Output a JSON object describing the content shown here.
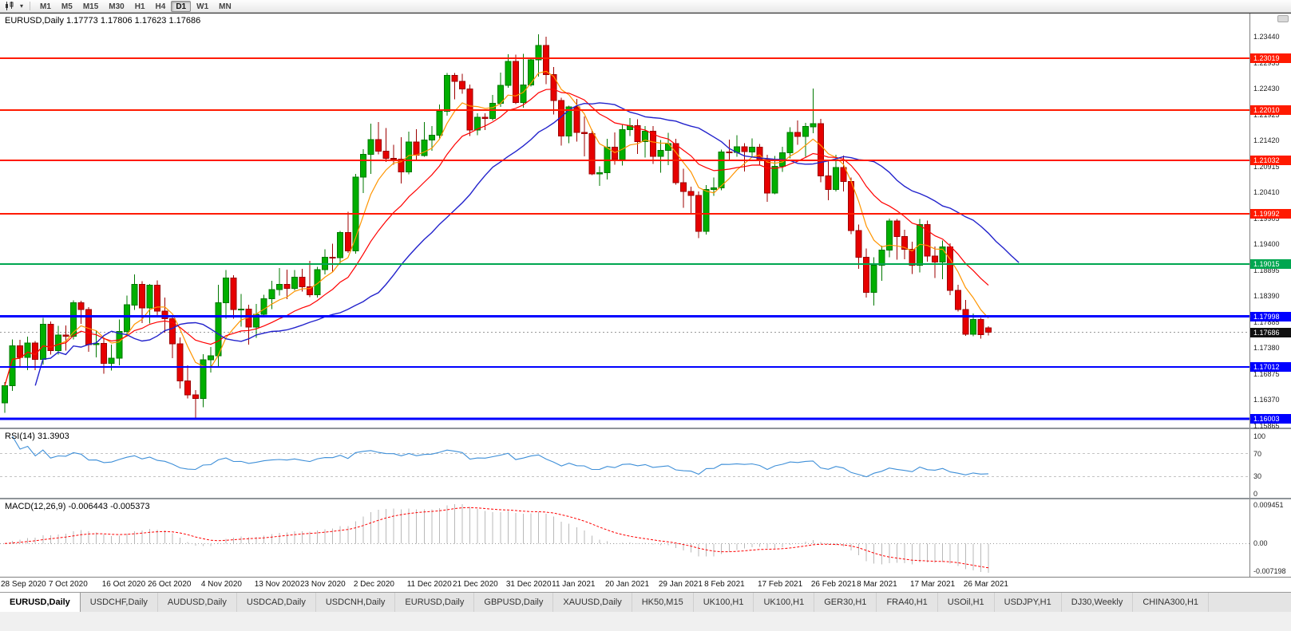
{
  "toolbar": {
    "timeframes": [
      "M1",
      "M5",
      "M15",
      "M30",
      "H1",
      "H4",
      "D1",
      "W1",
      "MN"
    ],
    "active_timeframe": "D1"
  },
  "colors": {
    "bull_fill": "#00AF00",
    "bull_stroke": "#007800",
    "bear_fill": "#E60000",
    "bear_stroke": "#9E0000",
    "ma_fast": "#FF9500",
    "ma_mid": "#FF0000",
    "ma_slow": "#2323CC",
    "line_red": "#FF1A00",
    "line_green": "#00A650",
    "line_blue": "#0000FF",
    "current": "#111111",
    "rsi_line": "#3E8FD8",
    "macd_hist": "#B9B9B9",
    "macd_signal": "#FF0000"
  },
  "chart": {
    "type": "candlestick",
    "symbol": "EURUSD,Daily",
    "title_line": "EURUSD,Daily 1.17773 1.17806 1.17623 1.17686",
    "scale_ticks": [
      "1.23440",
      "1.22935",
      "1.22430",
      "1.21925",
      "1.21420",
      "1.20915",
      "1.20410",
      "1.19905",
      "1.19400",
      "1.18895",
      "1.18390",
      "1.17885",
      "1.17380",
      "1.16875",
      "1.16370",
      "1.15865"
    ],
    "hlines": [
      {
        "price": 1.23019,
        "label": "1.23019",
        "color": "line_red",
        "width": 2
      },
      {
        "price": 1.2201,
        "label": "1.22010",
        "color": "line_red",
        "width": 2
      },
      {
        "price": 1.21032,
        "label": "1.21032",
        "color": "line_red",
        "width": 2
      },
      {
        "price": 1.19992,
        "label": "1.19992",
        "color": "line_red",
        "width": 2
      },
      {
        "price": 1.19015,
        "label": "1.19015",
        "color": "line_green",
        "width": 2
      },
      {
        "price": 1.17998,
        "label": "1.17998",
        "color": "line_blue",
        "width": 3
      },
      {
        "price": 1.17012,
        "label": "1.17012",
        "color": "line_blue",
        "width": 2
      },
      {
        "price": 1.16003,
        "label": "1.16003",
        "color": "line_blue",
        "width": 3
      }
    ],
    "current_price": {
      "label": "1.17686",
      "price": 1.17686
    },
    "date_labels": [
      [
        "28 Sep 2020",
        0
      ],
      [
        "7 Oct 2020",
        7
      ],
      [
        "16 Oct 2020",
        14
      ],
      [
        "26 Oct 2020",
        20
      ],
      [
        "4 Nov 2020",
        27
      ],
      [
        "13 Nov 2020",
        34
      ],
      [
        "23 Nov 2020",
        40
      ],
      [
        "2 Dec 2020",
        47
      ],
      [
        "11 Dec 2020",
        54
      ],
      [
        "21 Dec 2020",
        60
      ],
      [
        "31 Dec 2020",
        67
      ],
      [
        "11 Jan 2021",
        73
      ],
      [
        "20 Jan 2021",
        80
      ],
      [
        "29 Jan 2021",
        87
      ],
      [
        "8 Feb 2021",
        93
      ],
      [
        "17 Feb 2021",
        100
      ],
      [
        "26 Feb 2021",
        107
      ],
      [
        "8 Mar 2021",
        113
      ],
      [
        "17 Mar 2021",
        120
      ],
      [
        "26 Mar 2021",
        127
      ]
    ],
    "candles": [
      [
        1.1631,
        1.1672,
        1.1612,
        1.1665
      ],
      [
        1.1665,
        1.1755,
        1.1655,
        1.1742
      ],
      [
        1.1742,
        1.1754,
        1.1702,
        1.172
      ],
      [
        1.172,
        1.176,
        1.1695,
        1.1748
      ],
      [
        1.1748,
        1.1752,
        1.1695,
        1.1716
      ],
      [
        1.1716,
        1.1797,
        1.1706,
        1.1784
      ],
      [
        1.1784,
        1.179,
        1.1725,
        1.1733
      ],
      [
        1.1733,
        1.1781,
        1.1725,
        1.1763
      ],
      [
        1.1763,
        1.1782,
        1.1733,
        1.1761
      ],
      [
        1.1761,
        1.1831,
        1.1755,
        1.1826
      ],
      [
        1.1826,
        1.183,
        1.1785,
        1.1813
      ],
      [
        1.1813,
        1.1818,
        1.1731,
        1.1745
      ],
      [
        1.1745,
        1.1772,
        1.172,
        1.1747
      ],
      [
        1.1747,
        1.1758,
        1.1688,
        1.1708
      ],
      [
        1.1708,
        1.1745,
        1.1694,
        1.1718
      ],
      [
        1.1718,
        1.1794,
        1.1704,
        1.177
      ],
      [
        1.177,
        1.184,
        1.176,
        1.1822
      ],
      [
        1.1822,
        1.1881,
        1.1812,
        1.1862
      ],
      [
        1.1862,
        1.1868,
        1.1787,
        1.1816
      ],
      [
        1.1816,
        1.1863,
        1.1786,
        1.186
      ],
      [
        1.186,
        1.187,
        1.18,
        1.181
      ],
      [
        1.181,
        1.1836,
        1.1768,
        1.1795
      ],
      [
        1.1795,
        1.18,
        1.1718,
        1.1746
      ],
      [
        1.1746,
        1.1759,
        1.1659,
        1.1674
      ],
      [
        1.1674,
        1.1704,
        1.164,
        1.1647
      ],
      [
        1.1647,
        1.1656,
        1.1603,
        1.164
      ],
      [
        1.164,
        1.1726,
        1.1623,
        1.1715
      ],
      [
        1.1715,
        1.174,
        1.169,
        1.1723
      ],
      [
        1.1723,
        1.1861,
        1.1702,
        1.1826
      ],
      [
        1.1826,
        1.189,
        1.1795,
        1.1874
      ],
      [
        1.1874,
        1.188,
        1.1795,
        1.1813
      ],
      [
        1.1813,
        1.1843,
        1.178,
        1.1814
      ],
      [
        1.1814,
        1.1822,
        1.1745,
        1.1779
      ],
      [
        1.1779,
        1.1824,
        1.1758,
        1.1804
      ],
      [
        1.1804,
        1.1842,
        1.1799,
        1.1834
      ],
      [
        1.1834,
        1.1869,
        1.1814,
        1.1852
      ],
      [
        1.1852,
        1.1894,
        1.184,
        1.1862
      ],
      [
        1.1862,
        1.1891,
        1.1833,
        1.1854
      ],
      [
        1.1854,
        1.189,
        1.185,
        1.1876
      ],
      [
        1.1876,
        1.1892,
        1.1848,
        1.1857
      ],
      [
        1.1857,
        1.1908,
        1.1837,
        1.1842
      ],
      [
        1.1842,
        1.1896,
        1.1836,
        1.1891
      ],
      [
        1.1891,
        1.193,
        1.1881,
        1.1915
      ],
      [
        1.1915,
        1.1941,
        1.1886,
        1.1914
      ],
      [
        1.1914,
        1.1966,
        1.19,
        1.1963
      ],
      [
        1.1963,
        1.2003,
        1.1923,
        1.1927
      ],
      [
        1.1927,
        1.2077,
        1.1922,
        1.2071
      ],
      [
        1.2071,
        1.2125,
        1.204,
        1.2115
      ],
      [
        1.2115,
        1.2175,
        1.2077,
        1.2144
      ],
      [
        1.2144,
        1.2178,
        1.2115,
        1.2121
      ],
      [
        1.2121,
        1.2166,
        1.21,
        1.2107
      ],
      [
        1.2107,
        1.2134,
        1.2095,
        1.2106
      ],
      [
        1.2106,
        1.2148,
        1.2058,
        1.2081
      ],
      [
        1.2081,
        1.2159,
        1.2076,
        1.2139
      ],
      [
        1.2139,
        1.2164,
        1.2104,
        1.2113
      ],
      [
        1.2113,
        1.2178,
        1.211,
        1.2143
      ],
      [
        1.2143,
        1.217,
        1.2122,
        1.2152
      ],
      [
        1.2152,
        1.2212,
        1.2146,
        1.2199
      ],
      [
        1.2199,
        1.2273,
        1.219,
        1.2269
      ],
      [
        1.2269,
        1.2273,
        1.2222,
        1.2257
      ],
      [
        1.2257,
        1.2272,
        1.2233,
        1.2242
      ],
      [
        1.2242,
        1.2251,
        1.2151,
        1.2162
      ],
      [
        1.2162,
        1.2195,
        1.2152,
        1.2187
      ],
      [
        1.2187,
        1.2195,
        1.2162,
        1.2185
      ],
      [
        1.2185,
        1.2231,
        1.2181,
        1.2214
      ],
      [
        1.2214,
        1.2274,
        1.2207,
        1.2249
      ],
      [
        1.2249,
        1.231,
        1.2245,
        1.2296
      ],
      [
        1.2296,
        1.2309,
        1.2213,
        1.2216
      ],
      [
        1.2216,
        1.2311,
        1.2206,
        1.225
      ],
      [
        1.225,
        1.2304,
        1.2247,
        1.2299
      ],
      [
        1.2299,
        1.2349,
        1.2266,
        1.2327
      ],
      [
        1.2327,
        1.2344,
        1.2252,
        1.227
      ],
      [
        1.227,
        1.2285,
        1.2193,
        1.222
      ],
      [
        1.222,
        1.2225,
        1.2132,
        1.2151
      ],
      [
        1.2151,
        1.221,
        1.2137,
        1.2207
      ],
      [
        1.2207,
        1.2223,
        1.214,
        1.2158
      ],
      [
        1.2158,
        1.2189,
        1.2111,
        1.2155
      ],
      [
        1.2155,
        1.2163,
        1.2075,
        1.2077
      ],
      [
        1.2077,
        1.2092,
        1.2054,
        1.2079
      ],
      [
        1.2079,
        1.2145,
        1.2066,
        1.2129
      ],
      [
        1.2129,
        1.2158,
        1.2095,
        1.2105
      ],
      [
        1.2105,
        1.2173,
        1.2093,
        1.2163
      ],
      [
        1.2163,
        1.2186,
        1.2151,
        1.2171
      ],
      [
        1.2171,
        1.2183,
        1.2116,
        1.214
      ],
      [
        1.214,
        1.217,
        1.2109,
        1.216
      ],
      [
        1.216,
        1.217,
        1.2096,
        1.2111
      ],
      [
        1.2111,
        1.2143,
        1.2079,
        1.2123
      ],
      [
        1.2123,
        1.2157,
        1.2094,
        1.2136
      ],
      [
        1.2136,
        1.2145,
        1.2056,
        1.206
      ],
      [
        1.206,
        1.2087,
        1.2011,
        1.2043
      ],
      [
        1.2043,
        1.2052,
        1.1999,
        1.2035
      ],
      [
        1.2035,
        1.2043,
        1.1952,
        1.1965
      ],
      [
        1.1965,
        1.2055,
        1.1959,
        1.2047
      ],
      [
        1.2047,
        1.207,
        1.2034,
        1.205
      ],
      [
        1.205,
        1.2124,
        1.2045,
        1.212
      ],
      [
        1.212,
        1.2144,
        1.2105,
        1.2119
      ],
      [
        1.2119,
        1.2152,
        1.211,
        1.213
      ],
      [
        1.213,
        1.2137,
        1.2082,
        1.212
      ],
      [
        1.212,
        1.2146,
        1.211,
        1.2129
      ],
      [
        1.2129,
        1.2135,
        1.2095,
        1.2105
      ],
      [
        1.2105,
        1.2114,
        1.2023,
        1.204
      ],
      [
        1.204,
        1.2112,
        1.2037,
        1.2092
      ],
      [
        1.2092,
        1.213,
        1.2081,
        1.2118
      ],
      [
        1.2118,
        1.2168,
        1.2107,
        1.2158
      ],
      [
        1.2158,
        1.2181,
        1.2134,
        1.215
      ],
      [
        1.215,
        1.2176,
        1.211,
        1.2169
      ],
      [
        1.2169,
        1.2243,
        1.2156,
        1.2175
      ],
      [
        1.2175,
        1.2184,
        1.2061,
        1.2073
      ],
      [
        1.2073,
        1.2101,
        1.2026,
        1.2047
      ],
      [
        1.2047,
        1.2114,
        1.2043,
        1.2089
      ],
      [
        1.2089,
        1.2113,
        1.2043,
        1.2062
      ],
      [
        1.2062,
        1.207,
        1.196,
        1.1967
      ],
      [
        1.1967,
        1.1978,
        1.1892,
        1.1915
      ],
      [
        1.1915,
        1.1932,
        1.1836,
        1.1846
      ],
      [
        1.1846,
        1.1915,
        1.1821,
        1.1899
      ],
      [
        1.1899,
        1.1937,
        1.1869,
        1.1929
      ],
      [
        1.1929,
        1.199,
        1.1915,
        1.1985
      ],
      [
        1.1985,
        1.1989,
        1.191,
        1.1955
      ],
      [
        1.1955,
        1.1968,
        1.1911,
        1.193
      ],
      [
        1.193,
        1.1945,
        1.1882,
        1.1899
      ],
      [
        1.1899,
        1.1989,
        1.1885,
        1.1978
      ],
      [
        1.1978,
        1.1986,
        1.1906,
        1.1917
      ],
      [
        1.1917,
        1.1936,
        1.1874,
        1.1905
      ],
      [
        1.1905,
        1.1947,
        1.1872,
        1.1935
      ],
      [
        1.1935,
        1.1942,
        1.1841,
        1.185
      ],
      [
        1.185,
        1.1861,
        1.1809,
        1.1813
      ],
      [
        1.1813,
        1.1832,
        1.1762,
        1.1765
      ],
      [
        1.1765,
        1.1805,
        1.1761,
        1.1794
      ],
      [
        1.1794,
        1.1797,
        1.1756,
        1.1764
      ],
      [
        1.17773,
        1.17806,
        1.17623,
        1.17686
      ]
    ]
  },
  "rsi": {
    "label": "RSI(14) 31.3903",
    "levels": [
      70,
      30
    ],
    "ticks": [
      {
        "v": 100,
        "t": "100"
      },
      {
        "v": 70,
        "t": "70"
      },
      {
        "v": 30,
        "t": "30"
      },
      {
        "v": 0,
        "t": "0"
      }
    ]
  },
  "macd": {
    "label": "MACD(12,26,9) -0.006443 -0.005373",
    "tick_top": "0.009451",
    "tick_zero": "0.00",
    "tick_bottom": "-0.007198"
  },
  "tabs": [
    "EURUSD,Daily",
    "USDCHF,Daily",
    "AUDUSD,Daily",
    "USDCAD,Daily",
    "USDCNH,Daily",
    "EURUSD,Daily",
    "GBPUSD,Daily",
    "XAUUSD,Daily",
    "HK50,M15",
    "UK100,H1",
    "UK100,H1",
    "GER30,H1",
    "FRA40,H1",
    "USOil,H1",
    "USDJPY,H1",
    "DJ30,Weekly",
    "CHINA300,H1"
  ],
  "active_tab": 0
}
